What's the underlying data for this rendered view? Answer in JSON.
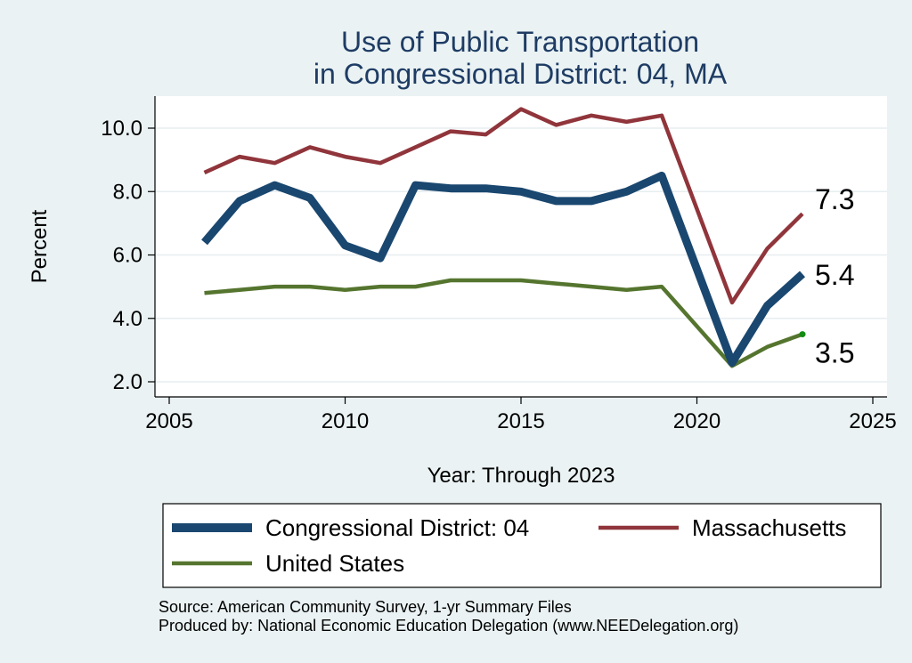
{
  "chart_data": {
    "type": "line",
    "title": [
      "Use of Public Transportation",
      "in Congressional District: 04, MA"
    ],
    "xlabel": "Year: Through 2023",
    "ylabel": "Percent",
    "xlim": [
      2005,
      2025
    ],
    "ylim": [
      2.0,
      10.8
    ],
    "xticks": [
      2005,
      2010,
      2015,
      2020,
      2025
    ],
    "yticks": [
      2.0,
      4.0,
      6.0,
      8.0,
      10.0
    ],
    "ytick_labels": [
      "2.0",
      "4.0",
      "6.0",
      "8.0",
      "10.0"
    ],
    "grid": true,
    "legend_position": "bottom",
    "x": [
      2006,
      2007,
      2008,
      2009,
      2010,
      2011,
      2012,
      2013,
      2014,
      2015,
      2016,
      2017,
      2018,
      2019,
      2021,
      2022,
      2023
    ],
    "series": [
      {
        "name": "Congressional District: 04",
        "color": "#1a476f",
        "values": [
          6.4,
          7.7,
          8.2,
          7.8,
          6.3,
          5.9,
          8.2,
          8.1,
          8.1,
          8.0,
          7.7,
          7.7,
          8.0,
          8.5,
          2.6,
          4.4,
          5.4
        ],
        "end_label": "5.4"
      },
      {
        "name": "Massachusetts",
        "color": "#90353b",
        "values": [
          8.6,
          9.1,
          8.9,
          9.4,
          9.1,
          8.9,
          9.4,
          9.9,
          9.8,
          10.6,
          10.1,
          10.4,
          10.2,
          10.4,
          4.5,
          6.2,
          7.3
        ],
        "end_label": "7.3"
      },
      {
        "name": "United States",
        "color": "#55752f",
        "values": [
          4.8,
          4.9,
          5.0,
          5.0,
          4.9,
          5.0,
          5.0,
          5.2,
          5.2,
          5.2,
          5.1,
          5.0,
          4.9,
          5.0,
          2.5,
          3.1,
          3.5
        ],
        "end_label": "3.5"
      }
    ],
    "notes": [
      "Source: American Community Survey, 1-yr Summary Files",
      "Produced by: National Economic Education Delegation (www.NEEDelegation.org)"
    ]
  }
}
